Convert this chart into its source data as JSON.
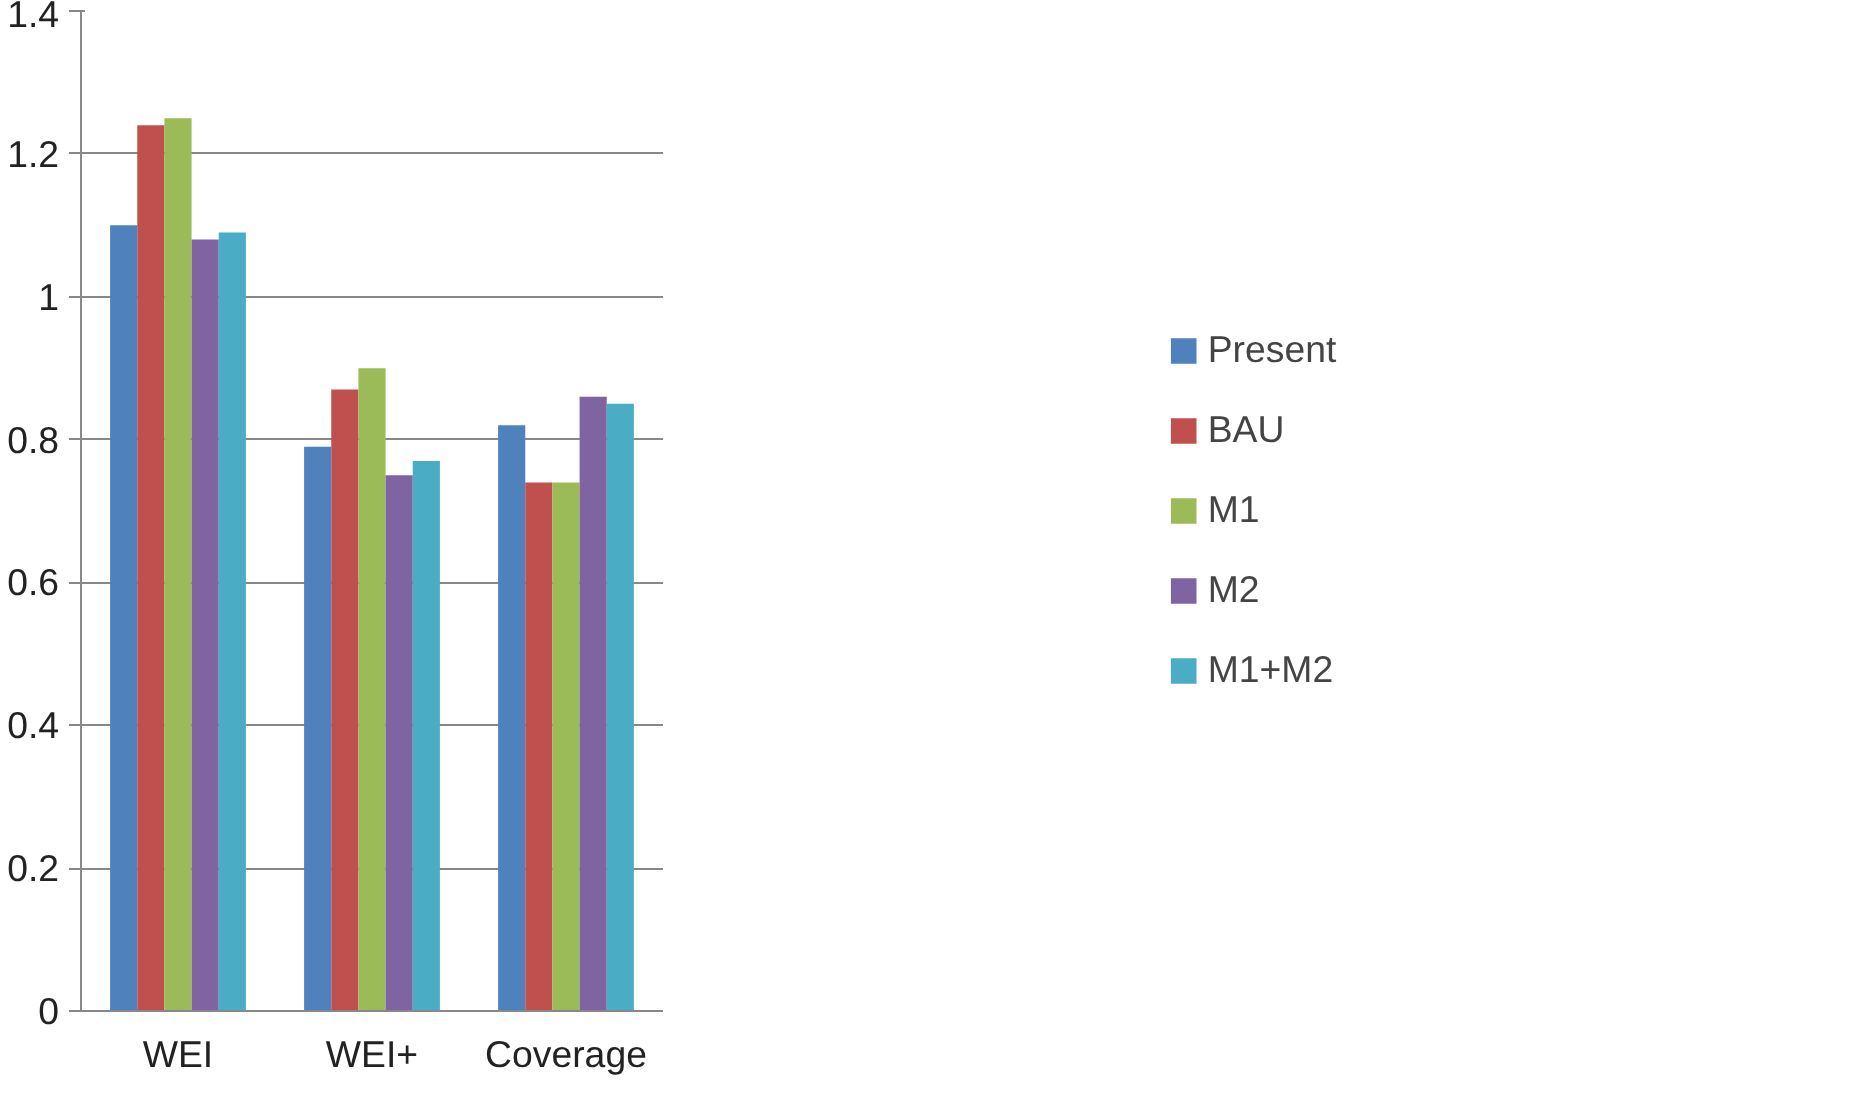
{
  "chart_data": {
    "type": "bar",
    "categories": [
      "WEI",
      "WEI+",
      "Coverage"
    ],
    "series": [
      {
        "name": "Present",
        "color": "#4f81bd",
        "values": [
          1.1,
          0.79,
          0.82
        ]
      },
      {
        "name": "BAU",
        "color": "#c0504d",
        "values": [
          1.24,
          0.87,
          0.74
        ]
      },
      {
        "name": "M1",
        "color": "#9bbb59",
        "values": [
          1.25,
          0.9,
          0.74
        ]
      },
      {
        "name": "M2",
        "color": "#8064a2",
        "values": [
          1.08,
          0.75,
          0.86
        ]
      },
      {
        "name": "M1+M2",
        "color": "#4bacc6",
        "values": [
          1.09,
          0.77,
          0.85
        ]
      }
    ],
    "ylim": [
      0,
      1.4
    ],
    "yticks": [
      0,
      {
        "value": 0.2,
        "label": "0.2"
      },
      {
        "value": 0.4,
        "label": "0.4"
      },
      {
        "value": 0.6,
        "label": "0.6"
      },
      {
        "value": 0.8,
        "label": "0.8"
      },
      1,
      {
        "value": 1.2,
        "label": "1.2"
      },
      {
        "value": 1.4,
        "label": "1.4"
      }
    ],
    "grid": "y",
    "legend": "right"
  }
}
